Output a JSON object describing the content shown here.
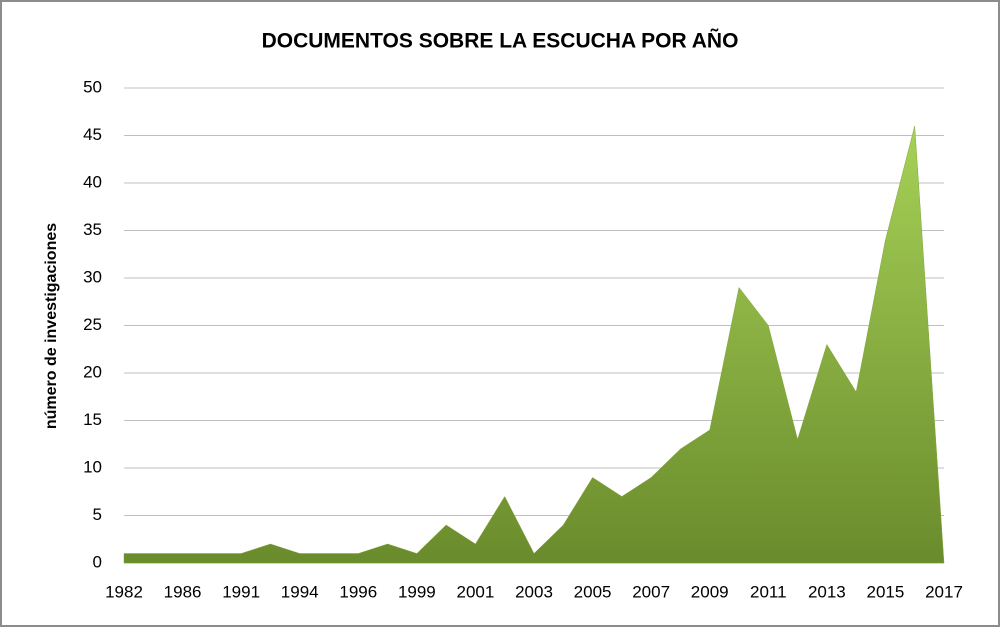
{
  "chart_data": {
    "type": "area",
    "title": "DOCUMENTOS SOBRE LA ESCUCHA POR AÑO",
    "y_label": "número de investigaciones",
    "categories": [
      "1982",
      null,
      "1986",
      null,
      "1991",
      null,
      "1994",
      null,
      "1996",
      null,
      "1999",
      null,
      "2001",
      null,
      "2003",
      null,
      "2005",
      null,
      "2007",
      null,
      "2009",
      null,
      "2011",
      null,
      "2013",
      null,
      "2015",
      null,
      "2017"
    ],
    "values": [
      1,
      1,
      1,
      1,
      1,
      2,
      1,
      1,
      1,
      2,
      1,
      4,
      2,
      7,
      1,
      4,
      9,
      7,
      9,
      12,
      14,
      29,
      25,
      13,
      23,
      18,
      34,
      46,
      0
    ],
    "color": "#7fa63a",
    "ylim": [
      0,
      50
    ],
    "yticks": [
      0,
      5,
      10,
      15,
      20,
      25,
      30,
      35,
      40,
      45,
      50
    ],
    "grid": true
  }
}
